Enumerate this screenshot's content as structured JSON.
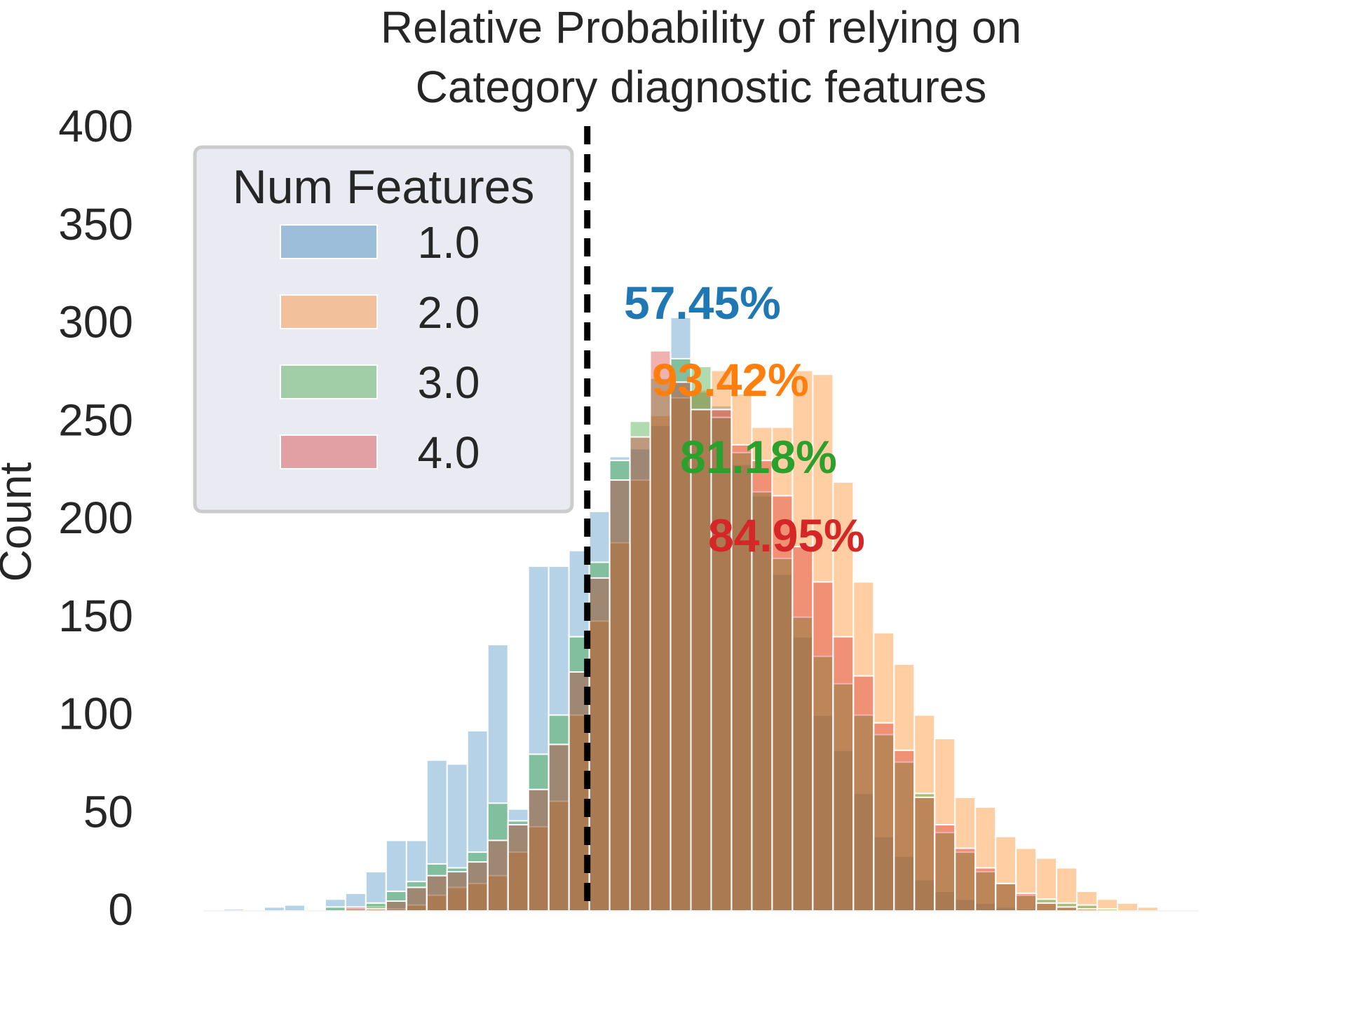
{
  "chart_data": {
    "type": "bar",
    "title": "Relative Probability of relying on\nCategory diagnostic features",
    "xlabel": "",
    "ylabel": "Count",
    "ylim": [
      0,
      400
    ],
    "yticks": [
      0,
      50,
      100,
      150,
      200,
      250,
      300,
      350,
      400
    ],
    "grid": false,
    "threshold_line": 0,
    "legend": {
      "title": "Num Features",
      "placement": "upper left"
    },
    "x": [
      -0.92,
      -0.87,
      -0.82,
      -0.77,
      -0.72,
      -0.67,
      -0.62,
      -0.57,
      -0.52,
      -0.47,
      -0.42,
      -0.37,
      -0.32,
      -0.27,
      -0.22,
      -0.17,
      -0.12,
      -0.07,
      -0.02,
      0.03,
      0.08,
      0.13,
      0.18,
      0.23,
      0.28,
      0.33,
      0.38,
      0.43,
      0.48,
      0.53,
      0.58,
      0.63,
      0.68,
      0.73,
      0.78,
      0.83,
      0.88,
      0.93,
      0.98,
      1.03,
      1.08,
      1.13,
      1.18,
      1.23,
      1.28,
      1.33,
      1.38,
      1.43,
      1.48
    ],
    "series": [
      {
        "name": "1.0",
        "color": "#1f77b4",
        "annotation": "57.45%",
        "values": [
          0,
          1,
          0,
          2,
          3,
          0,
          6,
          9,
          20,
          36,
          36,
          77,
          75,
          92,
          136,
          52,
          176,
          176,
          184,
          204,
          232,
          236,
          248,
          303,
          265,
          258,
          228,
          212,
          172,
          140,
          100,
          82,
          60,
          38,
          28,
          16,
          10,
          6,
          4,
          2,
          1,
          0,
          0,
          0,
          0,
          0,
          0,
          0,
          0
        ]
      },
      {
        "name": "2.0",
        "color": "#ff7f0e",
        "annotation": "93.42%",
        "values": [
          0,
          0,
          0,
          0,
          0,
          0,
          0,
          1,
          2,
          1,
          3,
          8,
          12,
          14,
          18,
          30,
          43,
          56,
          100,
          148,
          188,
          220,
          253,
          262,
          266,
          276,
          264,
          247,
          247,
          276,
          274,
          219,
          168,
          142,
          126,
          100,
          88,
          58,
          53,
          38,
          32,
          27,
          22,
          10,
          6,
          4,
          2,
          0,
          0
        ]
      },
      {
        "name": "3.0",
        "color": "#2ca02c",
        "annotation": "81.18%",
        "values": [
          0,
          0,
          0,
          0,
          0,
          0,
          2,
          1,
          4,
          10,
          15,
          24,
          22,
          30,
          55,
          46,
          80,
          100,
          140,
          178,
          230,
          250,
          272,
          282,
          278,
          252,
          234,
          214,
          180,
          150,
          130,
          116,
          100,
          90,
          76,
          60,
          40,
          30,
          20,
          14,
          8,
          6,
          4,
          3,
          1,
          0,
          0,
          0,
          0
        ]
      },
      {
        "name": "4.0",
        "color": "#d62728",
        "annotation": "84.95%",
        "values": [
          0,
          0,
          0,
          0,
          0,
          0,
          0,
          2,
          1,
          5,
          12,
          18,
          20,
          25,
          36,
          44,
          62,
          85,
          122,
          170,
          220,
          242,
          286,
          270,
          256,
          256,
          238,
          230,
          212,
          186,
          168,
          140,
          120,
          96,
          82,
          58,
          44,
          32,
          22,
          14,
          9,
          4,
          2,
          1,
          0,
          0,
          0,
          0,
          0
        ]
      }
    ]
  }
}
